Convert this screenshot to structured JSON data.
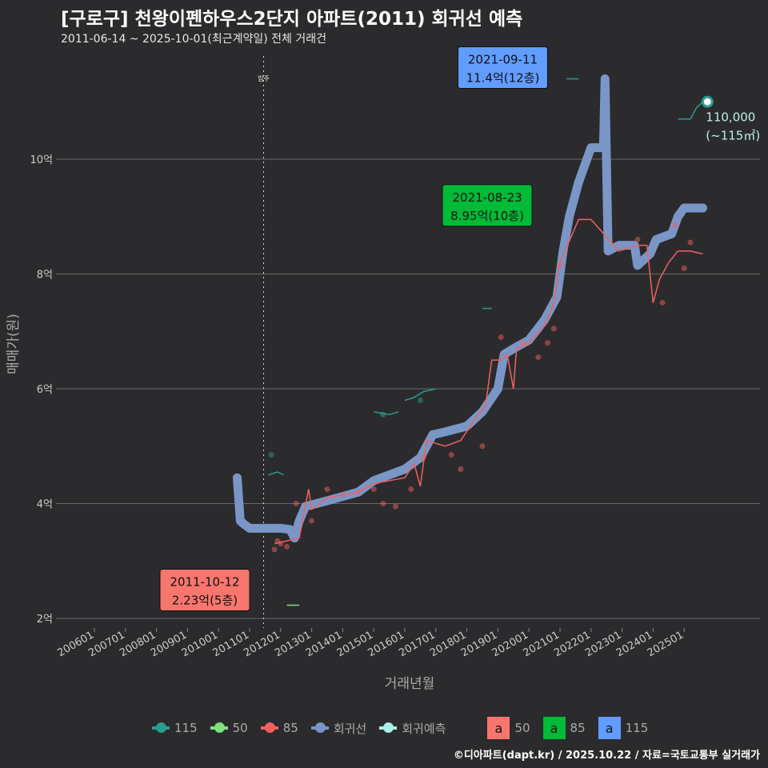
{
  "title": "[구로구] 천왕이펜하우스2단지 아파트(2011) 회귀선 예측",
  "subtitle": "2011-06-14 ~ 2025-10-01(최근계약일) 전체 거래건",
  "footer": "©디아파트(dapt.kr) / 2025.10.22 / 자료=국토교통부 실거래가",
  "legend": {
    "items": [
      {
        "label": "115",
        "color": "#2a9d8f"
      },
      {
        "label": "50",
        "color": "#7ee07e"
      },
      {
        "label": "85",
        "color": "#f06060"
      },
      {
        "label": "회귀선",
        "color": "#7a96c6"
      },
      {
        "label": "회귀예측",
        "color": "#a8eeea"
      }
    ],
    "boxes": [
      {
        "letter": "a",
        "label": "50",
        "color": "#f8766d"
      },
      {
        "letter": "a",
        "label": "85",
        "color": "#00ba38"
      },
      {
        "letter": "a",
        "label": "115",
        "color": "#619cff"
      }
    ]
  },
  "chart_data": {
    "type": "line",
    "xlabel": "거래년월",
    "ylabel": "매매가(원)",
    "ylim": [
      1.8,
      12
    ],
    "xlim": [
      2005.5,
      2026.7
    ],
    "yticks": [
      {
        "v": 2,
        "label": "2억"
      },
      {
        "v": 4,
        "label": "4억"
      },
      {
        "v": 6,
        "label": "6억"
      },
      {
        "v": 8,
        "label": "8억"
      },
      {
        "v": 10,
        "label": "10억"
      }
    ],
    "xticks": [
      "200601",
      "200701",
      "200801",
      "200901",
      "201001",
      "201101",
      "201201",
      "201301",
      "201401",
      "201501",
      "201601",
      "201701",
      "201801",
      "201901",
      "202001",
      "202101",
      "202201",
      "202301",
      "202401",
      "202501"
    ],
    "vline": {
      "x": 2011.45,
      "label": "입주"
    },
    "regression": [
      [
        2010.6,
        4.45
      ],
      [
        2010.7,
        3.7
      ],
      [
        2010.8,
        3.65
      ],
      [
        2011.0,
        3.57
      ],
      [
        2012.0,
        3.57
      ],
      [
        2012.3,
        3.55
      ],
      [
        2012.45,
        3.4
      ],
      [
        2012.6,
        3.7
      ],
      [
        2012.8,
        3.95
      ],
      [
        2013.5,
        4.05
      ],
      [
        2014.5,
        4.2
      ],
      [
        2015.0,
        4.4
      ],
      [
        2015.5,
        4.5
      ],
      [
        2016.0,
        4.6
      ],
      [
        2016.5,
        4.8
      ],
      [
        2016.9,
        5.2
      ],
      [
        2017.3,
        5.25
      ],
      [
        2018.0,
        5.35
      ],
      [
        2018.5,
        5.6
      ],
      [
        2019.0,
        6.0
      ],
      [
        2019.2,
        6.6
      ],
      [
        2019.5,
        6.7
      ],
      [
        2020.0,
        6.85
      ],
      [
        2020.5,
        7.2
      ],
      [
        2020.9,
        7.6
      ],
      [
        2021.1,
        8.4
      ],
      [
        2021.3,
        9.0
      ],
      [
        2021.6,
        9.6
      ],
      [
        2022.0,
        10.2
      ],
      [
        2022.4,
        10.2
      ],
      [
        2022.45,
        11.4
      ],
      [
        2022.55,
        8.4
      ],
      [
        2022.9,
        8.5
      ],
      [
        2023.4,
        8.5
      ],
      [
        2023.5,
        8.15
      ],
      [
        2023.9,
        8.35
      ],
      [
        2024.1,
        8.6
      ],
      [
        2024.6,
        8.7
      ],
      [
        2024.8,
        9.0
      ],
      [
        2025.0,
        9.15
      ],
      [
        2025.6,
        9.15
      ]
    ],
    "series": [
      {
        "name": "85",
        "color": "#f06060",
        "line": [
          [
            2011.8,
            3.3
          ],
          [
            2012.2,
            3.35
          ],
          [
            2012.6,
            3.4
          ],
          [
            2012.9,
            4.25
          ],
          [
            2013.0,
            3.9
          ],
          [
            2013.5,
            4.1
          ],
          [
            2014.0,
            4.15
          ],
          [
            2014.5,
            4.2
          ],
          [
            2015.0,
            4.35
          ],
          [
            2015.5,
            4.4
          ],
          [
            2016.0,
            4.45
          ],
          [
            2016.3,
            4.7
          ],
          [
            2016.5,
            4.3
          ],
          [
            2016.7,
            5.1
          ],
          [
            2017.3,
            5.0
          ],
          [
            2017.8,
            5.1
          ],
          [
            2018.3,
            5.5
          ],
          [
            2018.6,
            5.7
          ],
          [
            2018.8,
            6.5
          ],
          [
            2019.1,
            6.5
          ],
          [
            2019.3,
            6.6
          ],
          [
            2019.5,
            6.0
          ],
          [
            2019.6,
            6.7
          ],
          [
            2020.0,
            6.8
          ],
          [
            2020.5,
            7.1
          ],
          [
            2020.8,
            7.5
          ],
          [
            2021.0,
            8.2
          ],
          [
            2021.6,
            8.95
          ],
          [
            2022.0,
            8.95
          ],
          [
            2022.9,
            8.4
          ],
          [
            2023.5,
            8.5
          ],
          [
            2023.8,
            8.5
          ],
          [
            2024.0,
            7.5
          ],
          [
            2024.2,
            7.9
          ],
          [
            2024.5,
            8.2
          ],
          [
            2024.8,
            8.4
          ],
          [
            2025.2,
            8.4
          ],
          [
            2025.6,
            8.35
          ]
        ],
        "points": [
          [
            2011.8,
            3.2
          ],
          [
            2011.9,
            3.35
          ],
          [
            2012.0,
            3.3
          ],
          [
            2012.2,
            3.25
          ],
          [
            2012.5,
            4.0
          ],
          [
            2013.0,
            3.7
          ],
          [
            2013.5,
            4.25
          ],
          [
            2014.0,
            4.15
          ],
          [
            2014.5,
            4.2
          ],
          [
            2015.0,
            4.25
          ],
          [
            2015.3,
            4.0
          ],
          [
            2015.7,
            3.95
          ],
          [
            2016.2,
            4.25
          ],
          [
            2016.6,
            4.8
          ],
          [
            2017.5,
            4.85
          ],
          [
            2017.8,
            4.6
          ],
          [
            2018.5,
            5.0
          ],
          [
            2019.1,
            6.9
          ],
          [
            2019.8,
            6.8
          ],
          [
            2020.3,
            6.55
          ],
          [
            2020.6,
            6.8
          ],
          [
            2020.8,
            7.05
          ],
          [
            2021.0,
            8.15
          ],
          [
            2023.5,
            8.6
          ],
          [
            2024.3,
            7.5
          ],
          [
            2024.7,
            8.85
          ],
          [
            2025.0,
            8.1
          ],
          [
            2025.2,
            8.55
          ]
        ]
      },
      {
        "name": "115",
        "color": "#2a9d8f",
        "segments": [
          [
            [
              2011.6,
              4.5
            ],
            [
              2011.9,
              4.55
            ],
            [
              2012.1,
              4.5
            ]
          ],
          [
            [
              2015.0,
              5.6
            ],
            [
              2015.5,
              5.55
            ],
            [
              2015.8,
              5.6
            ]
          ],
          [
            [
              2016.0,
              5.8
            ],
            [
              2016.3,
              5.85
            ],
            [
              2016.6,
              5.95
            ],
            [
              2017.0,
              6.0
            ]
          ],
          [
            [
              2018.5,
              7.4
            ],
            [
              2018.8,
              7.4
            ]
          ],
          [
            [
              2021.2,
              11.4
            ],
            [
              2021.6,
              11.4
            ]
          ],
          [
            [
              2024.8,
              10.7
            ],
            [
              2025.2,
              10.7
            ],
            [
              2025.4,
              10.9
            ],
            [
              2025.6,
              11.0
            ]
          ]
        ],
        "points": [
          [
            2011.7,
            4.85
          ],
          [
            2015.3,
            5.55
          ],
          [
            2016.5,
            5.8
          ]
        ]
      },
      {
        "name": "50",
        "color": "#7ee07e",
        "segments": [
          [
            [
              2012.2,
              2.23
            ],
            [
              2012.6,
              2.23
            ]
          ]
        ],
        "points": []
      }
    ],
    "prediction": {
      "x": 2025.75,
      "y": 11.0,
      "label1": "110,000",
      "label2": "(~115㎡)"
    },
    "annotations": [
      {
        "text1": "2011-10-12",
        "text2": "2.23억(5층)",
        "bg": "#f8766d",
        "x": 2011.0,
        "y": 2.3
      },
      {
        "text1": "2021-08-23",
        "text2": "8.95억(10층)",
        "bg": "#00ba38",
        "x": 2020.1,
        "y": 9.0
      },
      {
        "text1": "2021-09-11",
        "text2": "11.4억(12층)",
        "bg": "#619cff",
        "x": 2020.6,
        "y": 11.4
      }
    ]
  }
}
